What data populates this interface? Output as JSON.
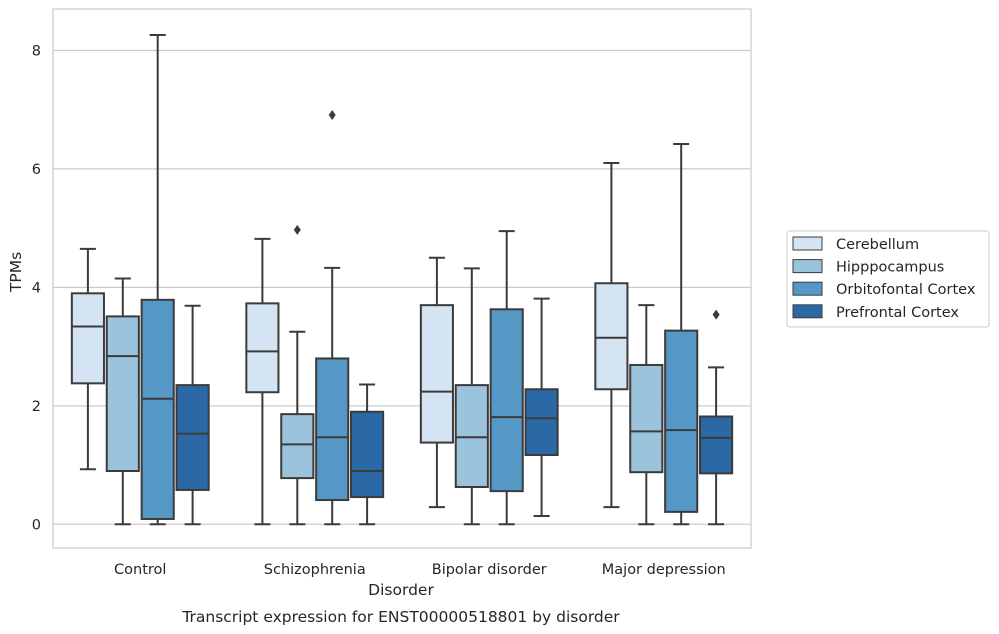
{
  "chart_data": {
    "type": "box",
    "title": "Transcript expression for ENST00000518801 by disorder",
    "xlabel": "Disorder",
    "ylabel": "TPMs",
    "ylim": [
      -0.4,
      8.7
    ],
    "yticks": [
      0,
      2,
      4,
      6,
      8
    ],
    "grid": "y",
    "legend_position": "right",
    "categories": [
      "Control",
      "Schizophrenia",
      "Bipolar disorder",
      "Major depression"
    ],
    "series": [
      {
        "name": "Cerebellum",
        "color": "#d4e4f3",
        "boxes": [
          {
            "whisker_low": 0.93,
            "q1": 2.38,
            "median": 3.34,
            "q3": 3.9,
            "whisker_high": 4.65,
            "outliers": []
          },
          {
            "whisker_low": 0.0,
            "q1": 2.23,
            "median": 2.92,
            "q3": 3.73,
            "whisker_high": 4.82,
            "outliers": []
          },
          {
            "whisker_low": 0.29,
            "q1": 1.38,
            "median": 2.24,
            "q3": 3.7,
            "whisker_high": 4.5,
            "outliers": []
          },
          {
            "whisker_low": 0.29,
            "q1": 2.28,
            "median": 3.15,
            "q3": 4.07,
            "whisker_high": 6.1,
            "outliers": []
          }
        ]
      },
      {
        "name": "Hipppocampus",
        "color": "#9cc3dc",
        "boxes": [
          {
            "whisker_low": 0.0,
            "q1": 0.9,
            "median": 2.84,
            "q3": 3.51,
            "whisker_high": 4.15,
            "outliers": []
          },
          {
            "whisker_low": 0.0,
            "q1": 0.78,
            "median": 1.35,
            "q3": 1.86,
            "whisker_high": 3.25,
            "outliers": [
              4.97
            ]
          },
          {
            "whisker_low": 0.0,
            "q1": 0.63,
            "median": 1.47,
            "q3": 2.35,
            "whisker_high": 4.32,
            "outliers": []
          },
          {
            "whisker_low": 0.0,
            "q1": 0.88,
            "median": 1.57,
            "q3": 2.69,
            "whisker_high": 3.7,
            "outliers": []
          }
        ]
      },
      {
        "name": "Orbitofontal Cortex",
        "color": "#5598c6",
        "boxes": [
          {
            "whisker_low": 0.0,
            "q1": 0.09,
            "median": 2.12,
            "q3": 3.79,
            "whisker_high": 8.26,
            "outliers": []
          },
          {
            "whisker_low": 0.0,
            "q1": 0.41,
            "median": 1.47,
            "q3": 2.8,
            "whisker_high": 4.33,
            "outliers": [
              6.91
            ]
          },
          {
            "whisker_low": 0.0,
            "q1": 0.56,
            "median": 1.81,
            "q3": 3.63,
            "whisker_high": 4.95,
            "outliers": []
          },
          {
            "whisker_low": 0.0,
            "q1": 0.21,
            "median": 1.59,
            "q3": 3.27,
            "whisker_high": 6.42,
            "outliers": []
          }
        ]
      },
      {
        "name": "Prefrontal Cortex",
        "color": "#2b69a6",
        "boxes": [
          {
            "whisker_low": 0.0,
            "q1": 0.58,
            "median": 1.53,
            "q3": 2.35,
            "whisker_high": 3.69,
            "outliers": []
          },
          {
            "whisker_low": 0.0,
            "q1": 0.46,
            "median": 0.9,
            "q3": 1.9,
            "whisker_high": 2.36,
            "outliers": []
          },
          {
            "whisker_low": 0.14,
            "q1": 1.17,
            "median": 1.79,
            "q3": 2.28,
            "whisker_high": 3.81,
            "outliers": []
          },
          {
            "whisker_low": 0.0,
            "q1": 0.86,
            "median": 1.46,
            "q3": 1.82,
            "whisker_high": 2.65,
            "outliers": [
              3.54
            ]
          }
        ]
      }
    ]
  }
}
